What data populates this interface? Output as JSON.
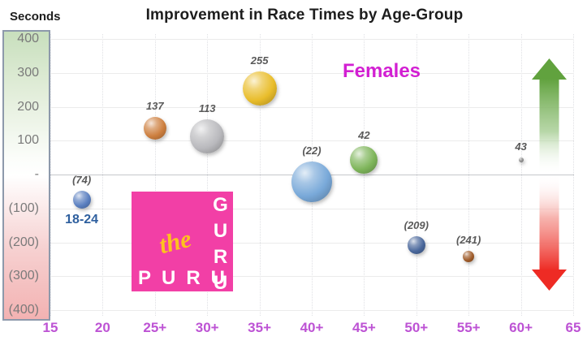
{
  "title": "Improvement in Race Times by Age-Group",
  "y_axis_label": "Seconds",
  "annotation": "Females",
  "logo": {
    "script_word": "the",
    "bottom_word": "PURU",
    "side_word": "GURU"
  },
  "colors": {
    "x_tick": "#bd53d4",
    "females_text": "#d21fd2",
    "logo_background": "#f23fa6",
    "logo_script": "#fec11e",
    "arrow_green": "#61a23e",
    "arrow_red": "#ee2b24",
    "positive_bar_tint": "#c8dfbd",
    "negative_bar_tint": "#f3b2b2"
  },
  "chart_data": {
    "type": "scatter",
    "subtype": "bubble",
    "title": "Improvement in Race Times by Age-Group",
    "xlabel": "",
    "ylabel": "Seconds",
    "xlim": [
      15,
      65
    ],
    "ylim": [
      -400,
      400
    ],
    "grid": true,
    "legend_position": "none",
    "x_tick_values": [
      15,
      20,
      25,
      30,
      35,
      40,
      45,
      50,
      55,
      60,
      65
    ],
    "x_tick_labels": [
      "15",
      "20",
      "25+",
      "30+",
      "35+",
      "40+",
      "45+",
      "50+",
      "55+",
      "60+",
      "65"
    ],
    "y_tick_values": [
      400,
      300,
      200,
      100,
      0,
      -100,
      -200,
      -300,
      -400
    ],
    "y_tick_labels": [
      "400",
      "300",
      "200",
      "100",
      "-",
      "(100)",
      "(200)",
      "(300)",
      "(400)"
    ],
    "points": [
      {
        "group": "18-24",
        "x": 18,
        "improvement_seconds": -74,
        "label": "(74)",
        "radius": 11,
        "color": "#5a7fc0",
        "show_group_label": true
      },
      {
        "group": "25+",
        "x": 25,
        "improvement_seconds": 137,
        "label": "137",
        "radius": 14,
        "color": "#cd7f3f"
      },
      {
        "group": "30+",
        "x": 30,
        "improvement_seconds": 113,
        "label": "113",
        "radius": 21,
        "color": "#b9b9bd"
      },
      {
        "group": "35+",
        "x": 35,
        "improvement_seconds": 255,
        "label": "255",
        "radius": 21,
        "color": "#e9bd2b"
      },
      {
        "group": "40+",
        "x": 40,
        "improvement_seconds": -22,
        "label": "(22)",
        "radius": 25,
        "color": "#79a9d9"
      },
      {
        "group": "45+",
        "x": 45,
        "improvement_seconds": 42,
        "label": "42",
        "radius": 17,
        "color": "#7eb55a"
      },
      {
        "group": "50+",
        "x": 50,
        "improvement_seconds": -209,
        "label": "(209)",
        "radius": 11,
        "color": "#49679b"
      },
      {
        "group": "55+",
        "x": 55,
        "improvement_seconds": -241,
        "label": "(241)",
        "radius": 7,
        "color": "#9e5a28"
      },
      {
        "group": "60+",
        "x": 60,
        "improvement_seconds": 43,
        "label": "43",
        "radius": 3,
        "color": "#8a8a8a"
      }
    ]
  }
}
